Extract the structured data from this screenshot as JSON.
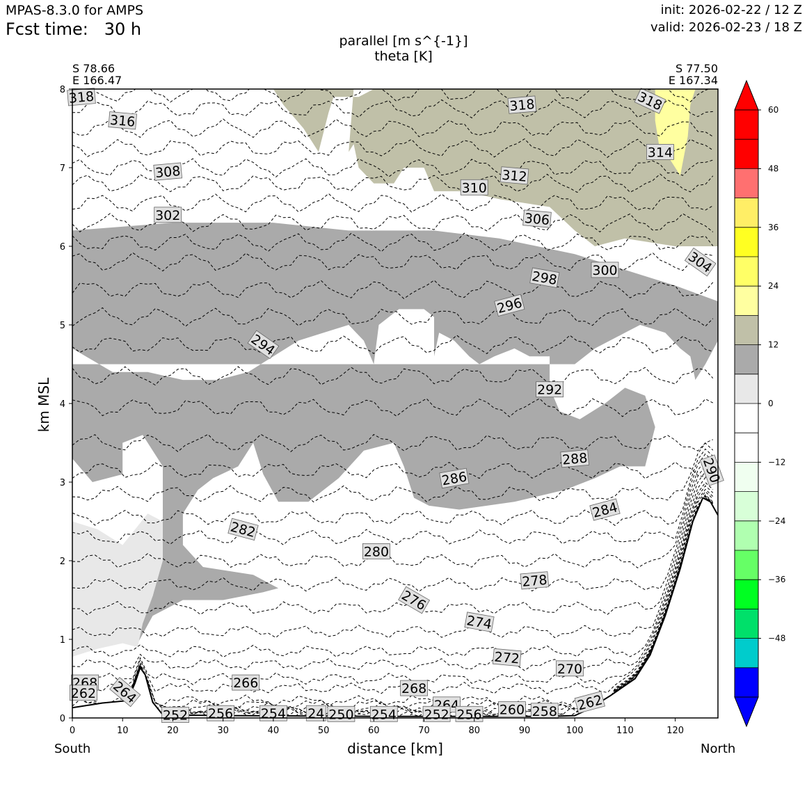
{
  "header": {
    "model": "MPAS-8.3.0 for AMPS",
    "fcst_label": "Fcst time:",
    "fcst_value": "30 h",
    "init": "init: 2026-02-22 / 12 Z",
    "valid": "valid: 2026-02-23 / 18 Z"
  },
  "endpoints": {
    "left_lat": "S 78.66",
    "left_lon": "E 166.47",
    "right_lat": "S 77.50",
    "right_lon": "E 167.34",
    "south": "South",
    "north": "North"
  },
  "colors": {
    "fill_12_18": "#aaaaaa",
    "fill_6_12": "#e8e8e8",
    "fill_18_24": "#c0c0a8",
    "fill_24_30": "#ffffa0",
    "axes": "#000000"
  },
  "chart_data": {
    "type": "cross-section contour",
    "title": "parallel [m s^{-1}]",
    "subtitle": "theta [K]",
    "xlabel": "distance [km]",
    "ylabel": "km MSL",
    "xlim": [
      0,
      128.5
    ],
    "ylim": [
      0,
      8
    ],
    "xticks": [
      0,
      10,
      20,
      30,
      40,
      50,
      60,
      70,
      80,
      90,
      100,
      110,
      120
    ],
    "yticks": [
      0,
      1,
      2,
      3,
      4,
      5,
      6,
      7,
      8
    ],
    "terrain": [
      [
        0,
        0.13
      ],
      [
        6,
        0.19
      ],
      [
        11,
        0.22
      ],
      [
        12.5,
        0.45
      ],
      [
        13.5,
        0.64
      ],
      [
        14.5,
        0.55
      ],
      [
        16,
        0.2
      ],
      [
        18,
        0.04
      ],
      [
        30,
        0.03
      ],
      [
        60,
        0.02
      ],
      [
        80,
        0.02
      ],
      [
        95,
        0.02
      ],
      [
        100,
        0.03
      ],
      [
        103,
        0.12
      ],
      [
        107,
        0.28
      ],
      [
        112,
        0.5
      ],
      [
        115,
        0.8
      ],
      [
        118,
        1.3
      ],
      [
        121,
        1.9
      ],
      [
        123.5,
        2.5
      ],
      [
        125.5,
        2.8
      ],
      [
        127,
        2.75
      ],
      [
        128.5,
        2.58
      ]
    ],
    "fill_regions": [
      {
        "level": "12 to 18",
        "color": "#aaaaaa",
        "points": [
          [
            0,
            0.78
          ],
          [
            5,
            0.9
          ],
          [
            10,
            0.98
          ],
          [
            13,
            0.95
          ],
          [
            16,
            1.3
          ],
          [
            22,
            1.5
          ],
          [
            30,
            1.5
          ],
          [
            38,
            1.6
          ],
          [
            41,
            1.65
          ],
          [
            36,
            1.82
          ],
          [
            26,
            1.92
          ],
          [
            22,
            2.2
          ],
          [
            22,
            2.6
          ],
          [
            25,
            2.9
          ],
          [
            28,
            3.05
          ],
          [
            33,
            3.2
          ],
          [
            36,
            3.5
          ],
          [
            38,
            3.1
          ],
          [
            41,
            2.75
          ],
          [
            47,
            2.75
          ],
          [
            53,
            3.05
          ],
          [
            58,
            3.4
          ],
          [
            64,
            3.5
          ],
          [
            66,
            3.2
          ],
          [
            68,
            2.8
          ],
          [
            71,
            2.7
          ],
          [
            77,
            2.65
          ],
          [
            88,
            2.75
          ],
          [
            98,
            2.9
          ],
          [
            104,
            3.05
          ],
          [
            109,
            3.2
          ],
          [
            114,
            3.2
          ],
          [
            116,
            3.7
          ],
          [
            114,
            4.1
          ],
          [
            110,
            4.2
          ],
          [
            106,
            4.0
          ],
          [
            101,
            3.8
          ],
          [
            97,
            3.9
          ],
          [
            95,
            4.2
          ],
          [
            95,
            4.6
          ],
          [
            91,
            4.6
          ],
          [
            88,
            4.7
          ],
          [
            84,
            4.6
          ],
          [
            81,
            4.5
          ],
          [
            79,
            4.6
          ],
          [
            76,
            4.8
          ],
          [
            73,
            4.9
          ],
          [
            72,
            4.6
          ],
          [
            72,
            5.1
          ],
          [
            70,
            5.2
          ],
          [
            65,
            5.2
          ],
          [
            61,
            5.0
          ],
          [
            60,
            4.5
          ],
          [
            58,
            4.8
          ],
          [
            55,
            5.0
          ],
          [
            50,
            4.9
          ],
          [
            45,
            4.8
          ],
          [
            40,
            4.6
          ],
          [
            35,
            4.4
          ],
          [
            29,
            4.3
          ],
          [
            22,
            4.3
          ],
          [
            15,
            4.4
          ],
          [
            8,
            4.4
          ],
          [
            0,
            4.7
          ],
          [
            0,
            6.2
          ],
          [
            20,
            6.3
          ],
          [
            40,
            6.3
          ],
          [
            55,
            6.2
          ],
          [
            72,
            6.2
          ],
          [
            85,
            6.1
          ],
          [
            100,
            5.9
          ],
          [
            110,
            5.7
          ],
          [
            120,
            5.5
          ],
          [
            128.5,
            5.3
          ],
          [
            128.5,
            4.8
          ],
          [
            126,
            4.5
          ],
          [
            124,
            4.3
          ],
          [
            123,
            4.6
          ],
          [
            121,
            4.7
          ],
          [
            118,
            4.9
          ],
          [
            113,
            5.0
          ],
          [
            110,
            4.9
          ],
          [
            104,
            4.7
          ],
          [
            100,
            4.5
          ],
          [
            0,
            4.5
          ],
          [
            0,
            3.3
          ],
          [
            4,
            3.0
          ],
          [
            10,
            3.1
          ],
          [
            10,
            3.5
          ],
          [
            14,
            3.6
          ],
          [
            18,
            3.2
          ],
          [
            18,
            2.7
          ],
          [
            18,
            2.1
          ],
          [
            16,
            1.55
          ],
          [
            10,
            1.55
          ],
          [
            5,
            1.75
          ],
          [
            0,
            1.85
          ]
        ]
      },
      {
        "level": "18 to 24",
        "color": "#c0c0a8",
        "points": [
          [
            40,
            8
          ],
          [
            42,
            7.8
          ],
          [
            46,
            7.5
          ],
          [
            49,
            7.2
          ],
          [
            51,
            7.7
          ],
          [
            52,
            7.9
          ],
          [
            57,
            7.9
          ],
          [
            60,
            8
          ],
          [
            128.5,
            8
          ],
          [
            128.5,
            6.0
          ],
          [
            120,
            6.0
          ],
          [
            110,
            6.1
          ],
          [
            104,
            6.0
          ],
          [
            100,
            6.2
          ],
          [
            95,
            6.5
          ],
          [
            85,
            6.6
          ],
          [
            78,
            6.7
          ],
          [
            72,
            6.7
          ],
          [
            70,
            7.0
          ],
          [
            66,
            7.0
          ],
          [
            64,
            6.8
          ],
          [
            60,
            6.8
          ],
          [
            57,
            7.0
          ],
          [
            56,
            7.3
          ],
          [
            55,
            7.2
          ],
          [
            56,
            8
          ],
          [
            40,
            8
          ]
        ]
      },
      {
        "level": "24 to 30",
        "color": "#ffffa0",
        "points": [
          [
            116,
            8
          ],
          [
            116,
            7.6
          ],
          [
            117,
            7.2
          ],
          [
            119,
            7.1
          ],
          [
            121,
            6.9
          ],
          [
            122.5,
            7.4
          ],
          [
            123,
            7.8
          ],
          [
            124,
            8
          ]
        ]
      },
      {
        "level": "6 to 12",
        "color": "#e8e8e8",
        "points": [
          [
            0,
            0.78
          ],
          [
            0,
            2.5
          ],
          [
            5,
            2.4
          ],
          [
            10,
            2.2
          ],
          [
            15,
            2.6
          ],
          [
            18,
            2.5
          ],
          [
            18,
            2.0
          ],
          [
            16,
            1.55
          ],
          [
            14,
            1.2
          ],
          [
            13,
            0.9
          ],
          [
            10,
            0.95
          ],
          [
            5,
            0.88
          ]
        ]
      }
    ],
    "theta_labels": [
      {
        "value": "318",
        "x": 1.8,
        "y": 7.9,
        "angle": -5
      },
      {
        "value": "316",
        "x": 10,
        "y": 7.6,
        "angle": 5
      },
      {
        "value": "308",
        "x": 19,
        "y": 6.95,
        "angle": -5
      },
      {
        "value": "302",
        "x": 19,
        "y": 6.4,
        "angle": 0
      },
      {
        "value": "294",
        "x": 38,
        "y": 4.75,
        "angle": 35
      },
      {
        "value": "318",
        "x": 89.5,
        "y": 7.8,
        "angle": -5
      },
      {
        "value": "312",
        "x": 88,
        "y": 6.9,
        "angle": 5
      },
      {
        "value": "310",
        "x": 80,
        "y": 6.75,
        "angle": 0
      },
      {
        "value": "306",
        "x": 92.5,
        "y": 6.35,
        "angle": 5
      },
      {
        "value": "318",
        "x": 115,
        "y": 7.85,
        "angle": 25
      },
      {
        "value": "314",
        "x": 117,
        "y": 7.2,
        "angle": 0
      },
      {
        "value": "304",
        "x": 125,
        "y": 5.8,
        "angle": 35
      },
      {
        "value": "300",
        "x": 106,
        "y": 5.7,
        "angle": 0
      },
      {
        "value": "298",
        "x": 94,
        "y": 5.6,
        "angle": 10
      },
      {
        "value": "296",
        "x": 87,
        "y": 5.25,
        "angle": -15
      },
      {
        "value": "292",
        "x": 95,
        "y": 4.18,
        "angle": 0
      },
      {
        "value": "288",
        "x": 100,
        "y": 3.3,
        "angle": -5
      },
      {
        "value": "290",
        "x": 127.3,
        "y": 3.15,
        "angle": 70
      },
      {
        "value": "286",
        "x": 76,
        "y": 3.05,
        "angle": -10
      },
      {
        "value": "284",
        "x": 106,
        "y": 2.65,
        "angle": -15
      },
      {
        "value": "282",
        "x": 34,
        "y": 2.4,
        "angle": 15
      },
      {
        "value": "280",
        "x": 60.5,
        "y": 2.12,
        "angle": 0
      },
      {
        "value": "278",
        "x": 92,
        "y": 1.75,
        "angle": -5
      },
      {
        "value": "276",
        "x": 68,
        "y": 1.5,
        "angle": 30
      },
      {
        "value": "274",
        "x": 81,
        "y": 1.22,
        "angle": 10
      },
      {
        "value": "272",
        "x": 86.5,
        "y": 0.77,
        "angle": 5
      },
      {
        "value": "270",
        "x": 99,
        "y": 0.63,
        "angle": 0
      },
      {
        "value": "268",
        "x": 2.5,
        "y": 0.45,
        "angle": 0
      },
      {
        "value": "262",
        "x": 2.2,
        "y": 0.32,
        "angle": 0
      },
      {
        "value": "264",
        "x": 10.5,
        "y": 0.33,
        "angle": 40
      },
      {
        "value": "266",
        "x": 34.5,
        "y": 0.45,
        "angle": 0
      },
      {
        "value": "268",
        "x": 68,
        "y": 0.38,
        "angle": 0
      },
      {
        "value": "264",
        "x": 74.5,
        "y": 0.17,
        "angle": 0
      },
      {
        "value": "262",
        "x": 103,
        "y": 0.2,
        "angle": -15
      },
      {
        "value": "260",
        "x": 87.5,
        "y": 0.11,
        "angle": 0
      },
      {
        "value": "258",
        "x": 94,
        "y": 0.09,
        "angle": 0
      },
      {
        "value": "256",
        "x": 79,
        "y": 0.05,
        "angle": 0
      },
      {
        "value": "252",
        "x": 72.5,
        "y": 0.05,
        "angle": 0
      },
      {
        "value": "254",
        "x": 62,
        "y": 0.05,
        "angle": 0
      },
      {
        "value": "250",
        "x": 53.5,
        "y": 0.05,
        "angle": 0
      },
      {
        "value": "24",
        "x": 48.5,
        "y": 0.06,
        "angle": 0
      },
      {
        "value": "254",
        "x": 40,
        "y": 0.06,
        "angle": 0
      },
      {
        "value": "256",
        "x": 29.5,
        "y": 0.06,
        "angle": 0
      },
      {
        "value": "252",
        "x": 20.5,
        "y": 0.04,
        "angle": 0
      }
    ],
    "theta_contours": [
      {
        "level": 252,
        "y": 0.04
      },
      {
        "level": 254,
        "y": 0.06
      },
      {
        "level": 256,
        "y": 0.08
      },
      {
        "level": 258,
        "y": 0.1
      },
      {
        "level": 260,
        "y": 0.13
      },
      {
        "level": 262,
        "y": 0.17
      },
      {
        "level": 264,
        "y": 0.22
      },
      {
        "level": 266,
        "y": 0.38
      },
      {
        "level": 268,
        "y": 0.5
      },
      {
        "level": 270,
        "y": 0.68
      },
      {
        "level": 272,
        "y": 0.85
      },
      {
        "level": 274,
        "y": 1.1
      },
      {
        "level": 276,
        "y": 1.4
      },
      {
        "level": 278,
        "y": 1.7
      },
      {
        "level": 280,
        "y": 2.0
      },
      {
        "level": 282,
        "y": 2.3
      },
      {
        "level": 284,
        "y": 2.55
      },
      {
        "level": 286,
        "y": 2.85
      },
      {
        "level": 288,
        "y": 3.15
      },
      {
        "level": 290,
        "y": 3.5
      },
      {
        "level": 292,
        "y": 3.95
      },
      {
        "level": 294,
        "y": 4.35
      },
      {
        "level": 296,
        "y": 4.75
      },
      {
        "level": 298,
        "y": 5.1
      },
      {
        "level": 300,
        "y": 5.45
      },
      {
        "level": 302,
        "y": 5.8
      },
      {
        "level": 304,
        "y": 6.05
      },
      {
        "level": 306,
        "y": 6.3
      },
      {
        "level": 308,
        "y": 6.55
      },
      {
        "level": 310,
        "y": 6.8
      },
      {
        "level": 312,
        "y": 7.0
      },
      {
        "level": 314,
        "y": 7.25
      },
      {
        "level": 316,
        "y": 7.5
      },
      {
        "level": 318,
        "y": 7.75
      },
      {
        "level": 320,
        "y": 7.95
      }
    ],
    "colorbar": {
      "bounds": [
        -60,
        -54,
        -48,
        -42,
        -36,
        -30,
        -24,
        -18,
        -12,
        -6,
        0,
        6,
        12,
        18,
        24,
        30,
        36,
        42,
        48,
        54,
        60
      ],
      "colors": [
        "#0000ff",
        "#00cccc",
        "#00e06a",
        "#00ff22",
        "#66ff66",
        "#b0ffb0",
        "#d8ffd8",
        "#f0fff0",
        "#ffffff",
        "#ffffff",
        "#e8e8e8",
        "#aaaaaa",
        "#c0c0a8",
        "#ffffa0",
        "#ffff66",
        "#ffff22",
        "#ffee66",
        "#ff7070",
        "#ff0000",
        "#ff0000"
      ],
      "tick_values": [
        60,
        48,
        36,
        24,
        12,
        0,
        -12,
        -24,
        -36,
        -48
      ],
      "tick_labels": [
        "60",
        "48",
        "36",
        "24",
        "12",
        "0",
        "−12",
        "−24",
        "−36",
        "−48"
      ],
      "extend": "both"
    }
  }
}
